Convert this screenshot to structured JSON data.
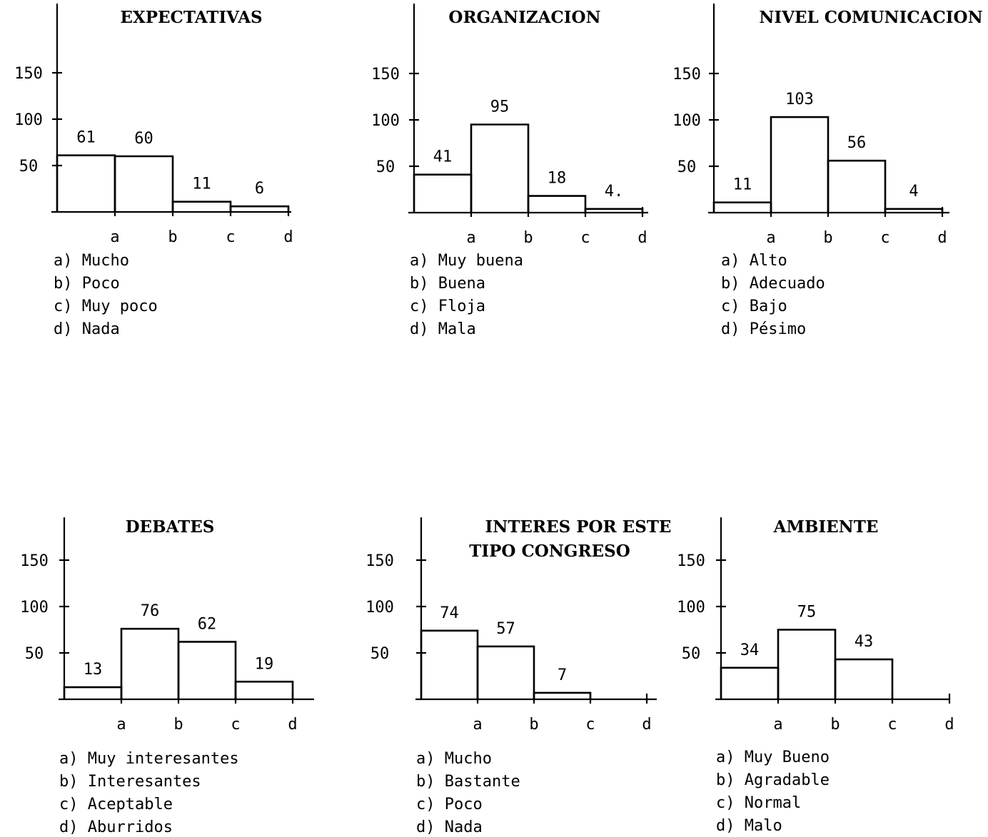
{
  "chart_data": [
    {
      "type": "bar",
      "title": "EXPECTATIVAS",
      "categories": [
        "a",
        "b",
        "c",
        "d"
      ],
      "values": [
        61,
        60,
        11,
        6
      ],
      "value_labels": [
        "61",
        "60",
        "11",
        "6"
      ],
      "yticks": [
        "50",
        "100",
        "150"
      ],
      "ylim": [
        0,
        200
      ],
      "legend": [
        "a) Mucho",
        "b) Poco",
        "c) Muy poco",
        "d) Nada"
      ]
    },
    {
      "type": "bar",
      "title": "ORGANIZACION",
      "categories": [
        "a",
        "b",
        "c",
        "d"
      ],
      "values": [
        41,
        95,
        18,
        4
      ],
      "value_labels": [
        "41",
        "95",
        "18",
        "4."
      ],
      "yticks": [
        "50",
        "100",
        "150"
      ],
      "ylim": [
        0,
        200
      ],
      "legend": [
        "a) Muy buena",
        "b) Buena",
        "c) Floja",
        "d) Mala"
      ]
    },
    {
      "type": "bar",
      "title": "NIVEL COMUNICACION",
      "categories": [
        "a",
        "b",
        "c",
        "d"
      ],
      "values": [
        11,
        103,
        56,
        4
      ],
      "value_labels": [
        "11",
        "103",
        "56",
        "4"
      ],
      "yticks": [
        "50",
        "100",
        "150"
      ],
      "ylim": [
        0,
        200
      ],
      "legend": [
        "a) Alto",
        "b) Adecuado",
        "c) Bajo",
        "d) Pésimo"
      ]
    },
    {
      "type": "bar",
      "title": "DEBATES",
      "categories": [
        "a",
        "b",
        "c",
        "d"
      ],
      "values": [
        13,
        76,
        62,
        19
      ],
      "value_labels": [
        "13",
        "76",
        "62",
        "19"
      ],
      "yticks": [
        "50",
        "100",
        "150"
      ],
      "ylim": [
        0,
        200
      ],
      "legend": [
        "a) Muy interesantes",
        "b) Interesantes",
        "c) Aceptable",
        "d) Aburridos"
      ]
    },
    {
      "type": "bar",
      "title": "INTERES POR ESTE",
      "title_line2": "TIPO CONGRESO",
      "categories": [
        "a",
        "b",
        "c",
        "d"
      ],
      "values": [
        74,
        57,
        7,
        0
      ],
      "value_labels": [
        "74",
        "57",
        "7",
        ""
      ],
      "yticks": [
        "50",
        "100",
        "150"
      ],
      "ylim": [
        0,
        200
      ],
      "legend": [
        "a) Mucho",
        "b) Bastante",
        "c) Poco",
        "d) Nada"
      ]
    },
    {
      "type": "bar",
      "title": "AMBIENTE",
      "categories": [
        "a",
        "b",
        "c",
        "d"
      ],
      "values": [
        34,
        75,
        43,
        0
      ],
      "value_labels": [
        "34",
        "75",
        "43",
        ""
      ],
      "yticks": [
        "50",
        "100",
        "150"
      ],
      "ylim": [
        0,
        200
      ],
      "legend": [
        "a) Muy Bueno",
        "b) Agradable",
        "c) Normal",
        "d) Malo"
      ]
    }
  ]
}
